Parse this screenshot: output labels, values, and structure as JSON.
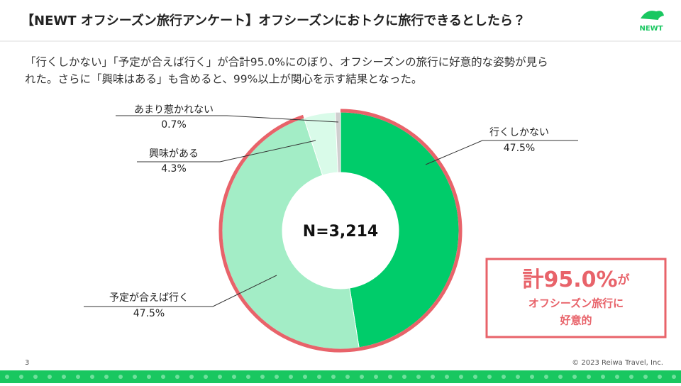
{
  "header": {
    "title": "【NEWT オフシーズン旅行アンケート】オフシーズンにおトクに旅行できるとしたら？",
    "logo": "NEWT"
  },
  "body": {
    "lines": [
      "「行くしかない」「予定が合えば行く」が合計95.0%にのぼり、オフシーズンの旅行に好意的な姿勢が見ら",
      "れた。さらに「興味はある」も含めると、99%以上が関心を示す結果となった。"
    ]
  },
  "chart_data": {
    "type": "donut",
    "center_label": "N=3,214",
    "categories": [
      "行くしかない",
      "予定が合えば行く",
      "興味がある",
      "あまり惹かれない"
    ],
    "values": [
      47.5,
      47.5,
      4.3,
      0.7
    ],
    "value_labels": [
      "47.5%",
      "47.5%",
      "4.3%",
      "0.7%"
    ],
    "colors": [
      "#00cc6a",
      "#a3edc6",
      "#d9fbe9",
      "#cfcfcf"
    ],
    "highlight_color": "#e8636a"
  },
  "callout": {
    "line1_main": "計95.0%",
    "line1_suffix": "が",
    "line2": "オフシーズン旅行に",
    "line3": "好意的"
  },
  "footer": {
    "page": "3",
    "copyright": "© 2023 Reiwa Travel, Inc."
  }
}
